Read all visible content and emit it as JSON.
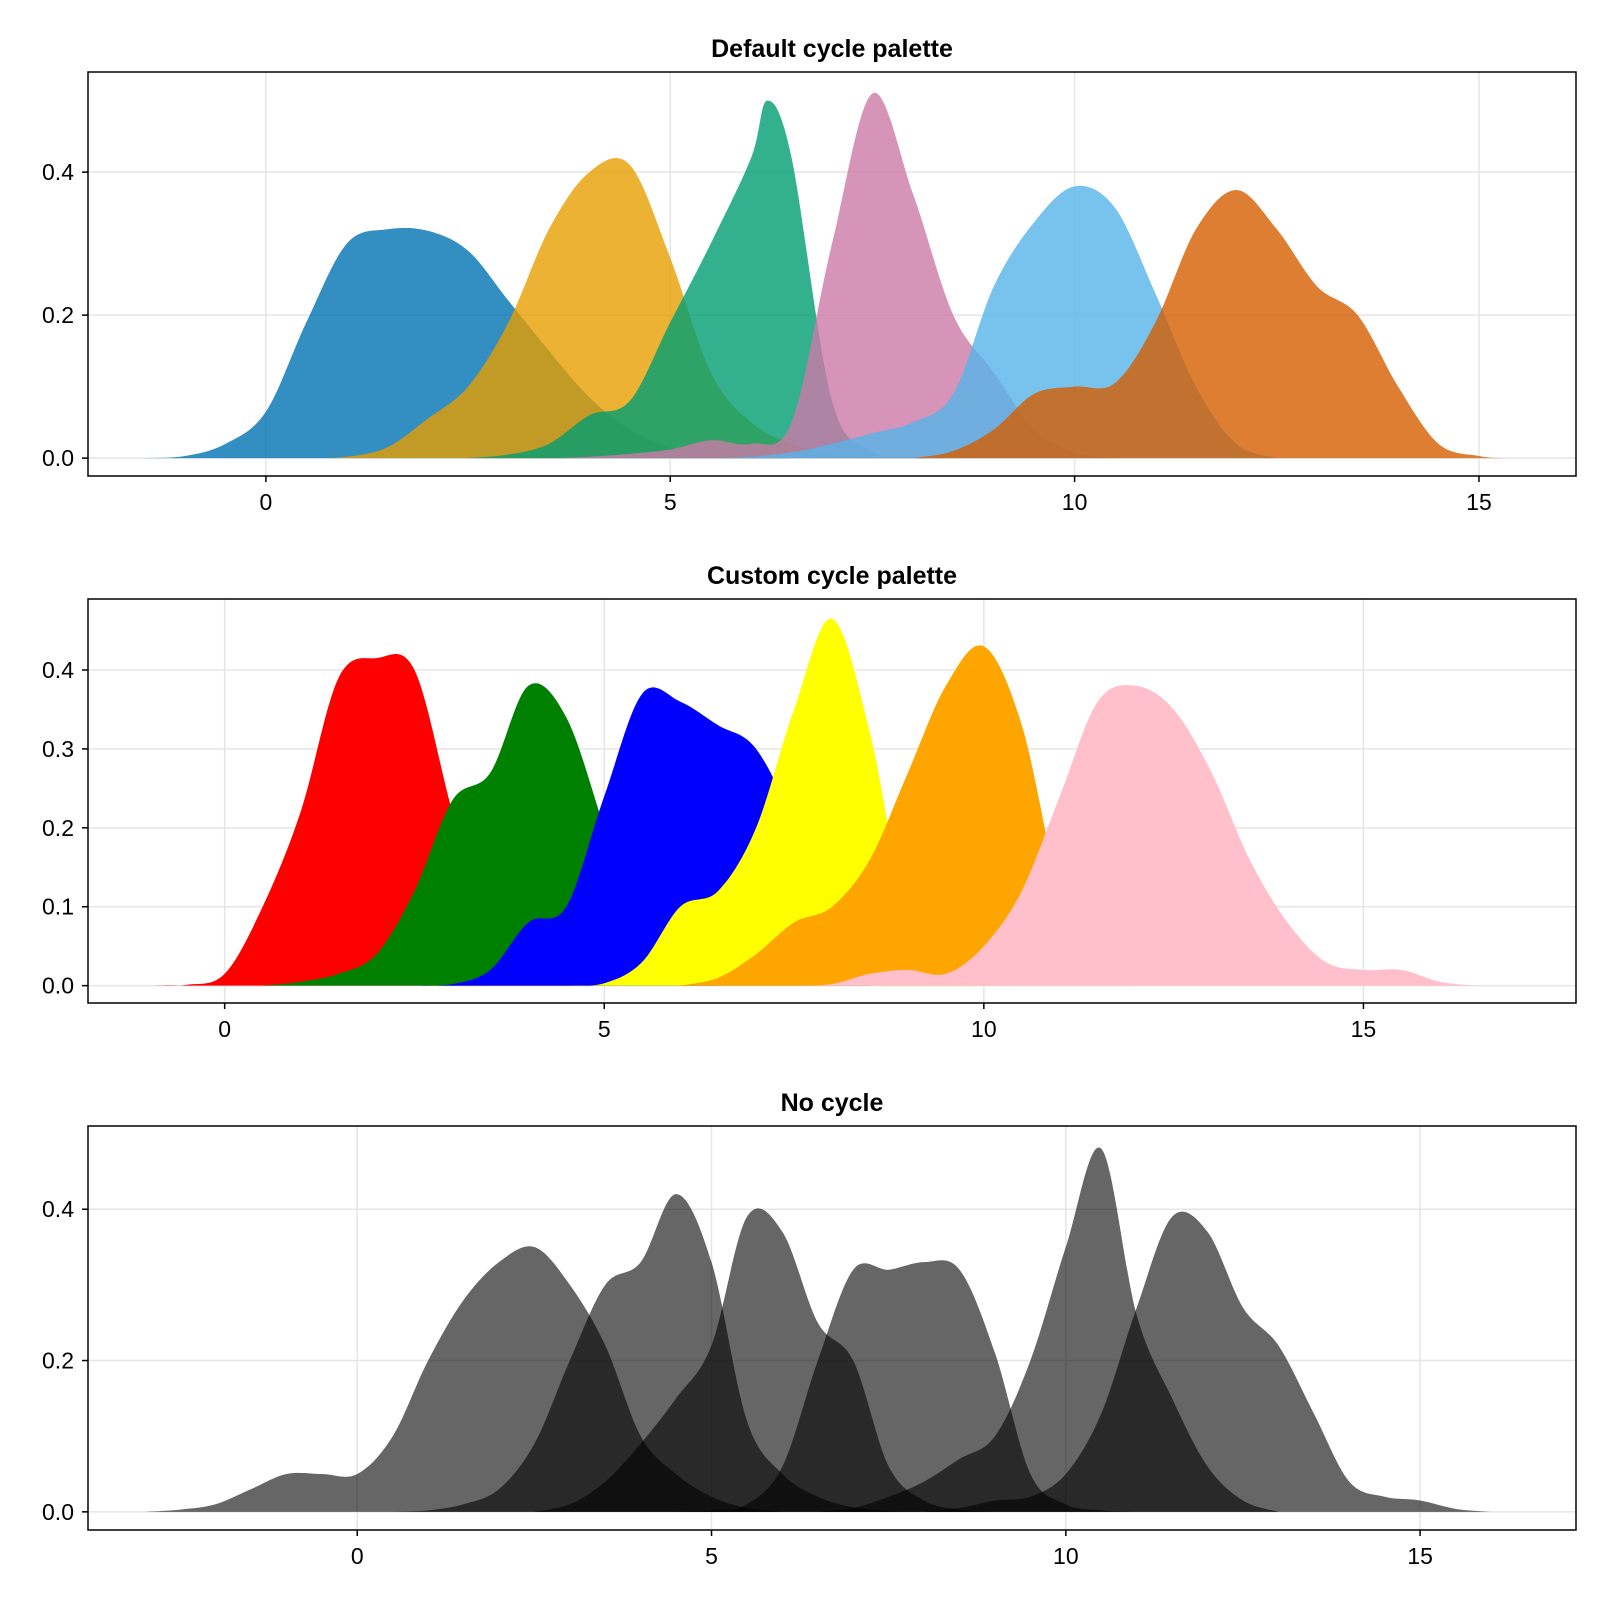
{
  "chart_data": [
    {
      "type": "area",
      "title": "Default cycle palette",
      "xlim": [
        -2.2,
        16.2
      ],
      "ylim": [
        -0.025,
        0.54
      ],
      "xticks": [
        0,
        5,
        10,
        15
      ],
      "yticks": [
        0.0,
        0.2,
        0.4
      ],
      "grid": true,
      "fill_opacity": 0.8,
      "series": [
        {
          "color": "#0072b2",
          "x": [
            -1.5,
            -1.0,
            -0.5,
            0,
            0.5,
            1.0,
            1.5,
            2.0,
            2.5,
            3.0,
            3.5,
            4.0,
            4.5,
            5.0,
            5.5,
            6.0,
            6.5
          ],
          "y": [
            0.0,
            0.003,
            0.02,
            0.065,
            0.19,
            0.3,
            0.32,
            0.318,
            0.29,
            0.22,
            0.15,
            0.085,
            0.04,
            0.015,
            0.005,
            0.001,
            0.0
          ]
        },
        {
          "color": "#e69f00",
          "x": [
            0.5,
            1.0,
            1.5,
            2.0,
            2.5,
            3.0,
            3.5,
            4.0,
            4.5,
            5.0,
            5.5,
            6.0,
            6.5,
            7.0,
            7.5,
            8.0
          ],
          "y": [
            0.0,
            0.002,
            0.015,
            0.055,
            0.1,
            0.19,
            0.32,
            0.4,
            0.41,
            0.28,
            0.12,
            0.05,
            0.02,
            0.006,
            0.001,
            0.0
          ]
        },
        {
          "color": "#009e73",
          "x": [
            2.5,
            3.0,
            3.5,
            4.0,
            4.5,
            5.0,
            5.5,
            6.0,
            6.2,
            6.5,
            7.0,
            7.5,
            8.0,
            8.5
          ],
          "y": [
            0.0,
            0.005,
            0.02,
            0.06,
            0.08,
            0.19,
            0.3,
            0.42,
            0.5,
            0.42,
            0.08,
            0.01,
            0.002,
            0.0
          ]
        },
        {
          "color": "#cc79a7",
          "x": [
            3.5,
            4.0,
            4.5,
            5.0,
            5.5,
            6.0,
            6.5,
            7.0,
            7.5,
            8.0,
            8.5,
            9.0,
            9.5,
            10.0,
            10.5
          ],
          "y": [
            0.0,
            0.002,
            0.006,
            0.012,
            0.025,
            0.02,
            0.05,
            0.3,
            0.51,
            0.37,
            0.2,
            0.12,
            0.04,
            0.008,
            0.0
          ]
        },
        {
          "color": "#56b4e9",
          "x": [
            5.5,
            6.0,
            6.5,
            7.0,
            7.5,
            8.0,
            8.5,
            9.0,
            9.5,
            10.0,
            10.5,
            11.0,
            11.5,
            12.0,
            12.5
          ],
          "y": [
            0.0,
            0.002,
            0.008,
            0.02,
            0.035,
            0.05,
            0.09,
            0.24,
            0.33,
            0.38,
            0.35,
            0.23,
            0.1,
            0.02,
            0.0
          ]
        },
        {
          "color": "#d55e00",
          "x": [
            8.0,
            8.5,
            9.0,
            9.5,
            10.0,
            10.5,
            11.0,
            11.5,
            12.0,
            12.5,
            13.0,
            13.5,
            14.0,
            14.5,
            15.0,
            15.3
          ],
          "y": [
            0.0,
            0.01,
            0.04,
            0.09,
            0.1,
            0.105,
            0.19,
            0.32,
            0.375,
            0.32,
            0.24,
            0.2,
            0.1,
            0.02,
            0.003,
            0.0
          ]
        }
      ]
    },
    {
      "type": "area",
      "title": "Custom cycle palette",
      "xlim": [
        -1.8,
        17.8
      ],
      "ylim": [
        -0.022,
        0.49
      ],
      "xticks": [
        0,
        5,
        10,
        15
      ],
      "yticks": [
        0.0,
        0.1,
        0.2,
        0.3,
        0.4
      ],
      "grid": true,
      "fill_opacity": 1,
      "series": [
        {
          "color": "#ff0000",
          "x": [
            -1.0,
            -0.5,
            0,
            0.5,
            1.0,
            1.5,
            2.0,
            2.5,
            3.0,
            3.5,
            4.0,
            4.5,
            5.0
          ],
          "y": [
            0.0,
            0.001,
            0.015,
            0.1,
            0.22,
            0.39,
            0.415,
            0.4,
            0.22,
            0.06,
            0.01,
            0.002,
            0.0
          ]
        },
        {
          "color": "#008000",
          "x": [
            0.5,
            1.0,
            1.5,
            2.0,
            2.5,
            3.0,
            3.5,
            4.0,
            4.5,
            5.0,
            5.5,
            6.0,
            6.5
          ],
          "y": [
            0.0,
            0.005,
            0.015,
            0.04,
            0.12,
            0.235,
            0.27,
            0.38,
            0.34,
            0.2,
            0.05,
            0.008,
            0.0
          ]
        },
        {
          "color": "#0000ff",
          "x": [
            2.5,
            3.0,
            3.5,
            4.0,
            4.5,
            5.0,
            5.5,
            6.0,
            6.5,
            7.0,
            7.5,
            8.0,
            8.5
          ],
          "y": [
            0.0,
            0.002,
            0.02,
            0.08,
            0.1,
            0.24,
            0.37,
            0.36,
            0.33,
            0.3,
            0.2,
            0.03,
            0.0
          ]
        },
        {
          "color": "#ffff00",
          "x": [
            4.5,
            5.0,
            5.5,
            6.0,
            6.5,
            7.0,
            7.5,
            8.0,
            8.5,
            9.0,
            9.5,
            10.0
          ],
          "y": [
            0.0,
            0.003,
            0.03,
            0.1,
            0.12,
            0.2,
            0.35,
            0.465,
            0.32,
            0.08,
            0.01,
            0.0
          ]
        },
        {
          "color": "#ffa500",
          "x": [
            6.0,
            6.5,
            7.0,
            7.5,
            8.0,
            8.5,
            9.0,
            9.5,
            10.0,
            10.5,
            11.0,
            11.5,
            12.0
          ],
          "y": [
            0.0,
            0.01,
            0.04,
            0.08,
            0.1,
            0.16,
            0.27,
            0.38,
            0.43,
            0.33,
            0.12,
            0.02,
            0.0
          ]
        },
        {
          "color": "#ffc0cb",
          "x": [
            7.5,
            8.0,
            8.5,
            9.0,
            9.5,
            10.0,
            10.5,
            11.0,
            11.5,
            12.0,
            12.5,
            13.0,
            13.5,
            14.0,
            14.5,
            15.0,
            15.5,
            16.0,
            16.5
          ],
          "y": [
            0.0,
            0.002,
            0.015,
            0.02,
            0.015,
            0.05,
            0.12,
            0.24,
            0.36,
            0.38,
            0.35,
            0.27,
            0.16,
            0.08,
            0.03,
            0.02,
            0.02,
            0.005,
            0.0
          ]
        }
      ]
    },
    {
      "type": "area",
      "title": "No cycle",
      "xlim": [
        -3.8,
        17.2
      ],
      "ylim": [
        -0.024,
        0.51
      ],
      "xticks": [
        0,
        5,
        10,
        15
      ],
      "yticks": [
        0.0,
        0.2,
        0.4
      ],
      "grid": true,
      "fill_opacity": 0.6,
      "series": [
        {
          "color": "#000000",
          "x": [
            -3.0,
            -2.5,
            -2.0,
            -1.5,
            -1.0,
            -0.5,
            0,
            0.5,
            1.0,
            1.5,
            2.0,
            2.5,
            3.0,
            3.5,
            4.0,
            4.5,
            5.0,
            5.5,
            6.0
          ],
          "y": [
            0.0,
            0.003,
            0.01,
            0.03,
            0.05,
            0.05,
            0.05,
            0.1,
            0.2,
            0.28,
            0.33,
            0.35,
            0.3,
            0.22,
            0.1,
            0.05,
            0.02,
            0.005,
            0.0
          ]
        },
        {
          "color": "#000000",
          "x": [
            0.5,
            1.0,
            1.5,
            2.0,
            2.5,
            3.0,
            3.5,
            4.0,
            4.5,
            5.0,
            5.5,
            6.0,
            6.5,
            7.0,
            7.5,
            8.0
          ],
          "y": [
            0.0,
            0.002,
            0.01,
            0.03,
            0.09,
            0.2,
            0.3,
            0.33,
            0.42,
            0.33,
            0.12,
            0.05,
            0.02,
            0.006,
            0.001,
            0.0
          ]
        },
        {
          "color": "#000000",
          "x": [
            2.5,
            3.0,
            3.5,
            4.0,
            4.5,
            5.0,
            5.5,
            6.0,
            6.5,
            7.0,
            7.5,
            8.0,
            8.5,
            9.0
          ],
          "y": [
            0.0,
            0.01,
            0.04,
            0.09,
            0.15,
            0.22,
            0.39,
            0.37,
            0.25,
            0.2,
            0.06,
            0.015,
            0.003,
            0.0
          ]
        },
        {
          "color": "#000000",
          "x": [
            4.5,
            5.0,
            5.5,
            6.0,
            6.5,
            7.0,
            7.5,
            8.0,
            8.5,
            9.0,
            9.5,
            10.0,
            10.5,
            11.0
          ],
          "y": [
            0.0,
            0.002,
            0.01,
            0.06,
            0.2,
            0.32,
            0.32,
            0.33,
            0.32,
            0.21,
            0.05,
            0.01,
            0.002,
            0.0
          ]
        },
        {
          "color": "#000000",
          "x": [
            6.5,
            7.0,
            7.5,
            8.0,
            8.5,
            9.0,
            9.5,
            10.0,
            10.5,
            11.0,
            11.5,
            12.0,
            12.5,
            13.0
          ],
          "y": [
            0.0,
            0.005,
            0.02,
            0.04,
            0.07,
            0.1,
            0.2,
            0.35,
            0.48,
            0.26,
            0.15,
            0.06,
            0.015,
            0.0
          ]
        },
        {
          "color": "#000000",
          "x": [
            8.0,
            8.5,
            9.0,
            9.5,
            10.0,
            10.5,
            11.0,
            11.5,
            12.0,
            12.5,
            13.0,
            13.5,
            14.0,
            14.5,
            15.0,
            15.5,
            16.0
          ],
          "y": [
            0.0,
            0.005,
            0.015,
            0.02,
            0.05,
            0.13,
            0.27,
            0.39,
            0.37,
            0.27,
            0.22,
            0.13,
            0.04,
            0.02,
            0.015,
            0.004,
            0.0
          ]
        }
      ]
    }
  ]
}
